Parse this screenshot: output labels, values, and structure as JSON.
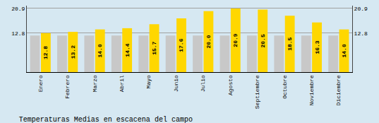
{
  "chart_data": {
    "type": "bar",
    "title": "Temperaturas Medias en escacena del campo",
    "categories": [
      "Enero",
      "Febrero",
      "Marzo",
      "Abril",
      "Mayo",
      "Junio",
      "Julio",
      "Agosto",
      "Septiembre",
      "Octubre",
      "Noviembre",
      "Diciembre"
    ],
    "series": [
      {
        "color": "#C8C8C8",
        "values": [
          12.0,
          12.0,
          12.0,
          12.0,
          12.0,
          12.0,
          12.0,
          12.0,
          12.0,
          12.0,
          12.0,
          12.0
        ]
      },
      {
        "color": "#FFD700",
        "values": [
          12.8,
          13.2,
          14.0,
          14.4,
          15.7,
          17.6,
          20.0,
          20.9,
          20.5,
          18.5,
          16.3,
          14.0
        ],
        "value_labels": [
          "12.8",
          "13.2",
          "14.0",
          "14.4",
          "15.7",
          "17.6",
          "20.0",
          "20.9",
          "20.5",
          "18.5",
          "16.3",
          "14.0"
        ],
        "data_labels": true
      }
    ],
    "ylim": [
      0,
      21.8
    ],
    "yticks": [
      12.8,
      20.9
    ],
    "y2lim": [
      0,
      21.8
    ],
    "y2ticks": [
      12.8,
      20.9
    ],
    "grid": true
  }
}
